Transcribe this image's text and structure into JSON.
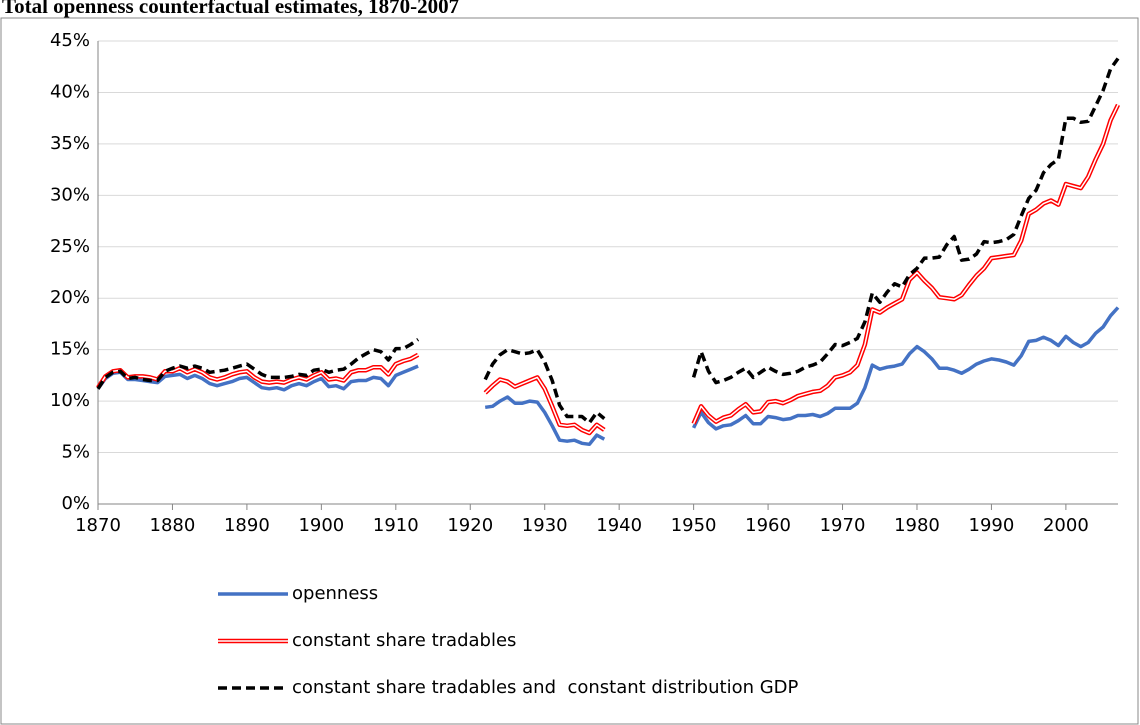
{
  "chart_data": {
    "type": "line",
    "title": "Total openness counterfactual estimates, 1870-2007",
    "x": [
      1870,
      1871,
      1872,
      1873,
      1874,
      1875,
      1876,
      1877,
      1878,
      1879,
      1880,
      1881,
      1882,
      1883,
      1884,
      1885,
      1886,
      1887,
      1888,
      1889,
      1890,
      1891,
      1892,
      1893,
      1894,
      1895,
      1896,
      1897,
      1898,
      1899,
      1900,
      1901,
      1902,
      1903,
      1904,
      1905,
      1906,
      1907,
      1908,
      1909,
      1910,
      1911,
      1912,
      1913,
      1914,
      1915,
      1916,
      1917,
      1918,
      1919,
      1920,
      1921,
      1922,
      1923,
      1924,
      1925,
      1926,
      1927,
      1928,
      1929,
      1930,
      1931,
      1932,
      1933,
      1934,
      1935,
      1936,
      1937,
      1938,
      1939,
      1940,
      1941,
      1942,
      1943,
      1944,
      1945,
      1946,
      1947,
      1948,
      1949,
      1950,
      1951,
      1952,
      1953,
      1954,
      1955,
      1956,
      1957,
      1958,
      1959,
      1960,
      1961,
      1962,
      1963,
      1964,
      1965,
      1966,
      1967,
      1968,
      1969,
      1970,
      1971,
      1972,
      1973,
      1974,
      1975,
      1976,
      1977,
      1978,
      1979,
      1980,
      1981,
      1982,
      1983,
      1984,
      1985,
      1986,
      1987,
      1988,
      1989,
      1990,
      1991,
      1992,
      1993,
      1994,
      1995,
      1996,
      1997,
      1998,
      1999,
      2000,
      2001,
      2002,
      2003,
      2004,
      2005,
      2006,
      2007
    ],
    "series": [
      {
        "name": "openness",
        "color": "#4472c4",
        "style": "solid",
        "values": [
          11.2,
          12.2,
          12.7,
          12.8,
          12.1,
          12.1,
          12.0,
          11.9,
          11.8,
          12.4,
          12.5,
          12.6,
          12.2,
          12.5,
          12.2,
          11.7,
          11.5,
          11.7,
          11.9,
          12.2,
          12.3,
          11.8,
          11.3,
          11.2,
          11.3,
          11.1,
          11.5,
          11.7,
          11.5,
          11.9,
          12.2,
          11.4,
          11.5,
          11.2,
          11.9,
          12.0,
          12.0,
          12.3,
          12.2,
          11.5,
          12.5,
          12.8,
          13.1,
          13.4,
          null,
          null,
          null,
          null,
          null,
          null,
          null,
          null,
          9.4,
          9.5,
          10.0,
          10.4,
          9.8,
          9.8,
          10.0,
          9.9,
          8.9,
          7.6,
          6.2,
          6.1,
          6.2,
          5.9,
          5.8,
          6.7,
          6.3,
          null,
          null,
          null,
          null,
          null,
          null,
          null,
          null,
          null,
          null,
          null,
          7.4,
          8.9,
          7.9,
          7.3,
          7.6,
          7.7,
          8.1,
          8.6,
          7.8,
          7.8,
          8.5,
          8.4,
          8.2,
          8.3,
          8.6,
          8.6,
          8.7,
          8.5,
          8.8,
          9.3,
          9.3,
          9.3,
          9.8,
          11.3,
          13.5,
          13.1,
          13.3,
          13.4,
          13.6,
          14.6,
          15.3,
          14.8,
          14.1,
          13.2,
          13.2,
          13.0,
          12.7,
          13.1,
          13.6,
          13.9,
          14.1,
          14.0,
          13.8,
          13.5,
          14.4,
          15.8,
          15.9,
          16.2,
          15.9,
          15.4,
          16.3,
          15.7,
          15.3,
          15.7,
          16.6,
          17.2,
          18.3,
          19.1
        ]
      },
      {
        "name": "constant share tradables",
        "color": "#ff0000",
        "style": "double",
        "values": [
          11.3,
          12.4,
          12.9,
          13.0,
          12.3,
          12.4,
          12.4,
          12.3,
          12.1,
          12.9,
          12.9,
          13.2,
          12.8,
          13.1,
          12.8,
          12.3,
          12.1,
          12.3,
          12.6,
          12.8,
          12.9,
          12.3,
          11.9,
          11.8,
          11.9,
          11.8,
          12.1,
          12.3,
          12.1,
          12.5,
          12.8,
          12.1,
          12.2,
          12.0,
          12.8,
          13.0,
          13.0,
          13.3,
          13.3,
          12.6,
          13.6,
          13.9,
          14.1,
          14.5,
          null,
          null,
          null,
          null,
          null,
          null,
          null,
          null,
          10.8,
          11.5,
          12.1,
          11.9,
          11.4,
          11.7,
          12.0,
          12.3,
          11.2,
          9.5,
          7.7,
          7.6,
          7.7,
          7.2,
          6.9,
          7.7,
          7.2,
          null,
          null,
          null,
          null,
          null,
          null,
          null,
          null,
          null,
          null,
          null,
          7.8,
          9.5,
          8.6,
          8.0,
          8.4,
          8.6,
          9.2,
          9.7,
          8.9,
          9.0,
          9.9,
          10.0,
          9.8,
          10.1,
          10.5,
          10.7,
          10.9,
          11.0,
          11.5,
          12.3,
          12.5,
          12.8,
          13.5,
          15.5,
          18.9,
          18.6,
          19.1,
          19.5,
          19.9,
          21.8,
          22.5,
          21.7,
          21.0,
          20.1,
          20.0,
          19.9,
          20.3,
          21.3,
          22.2,
          22.9,
          23.9,
          24.0,
          24.1,
          24.2,
          25.6,
          28.2,
          28.6,
          29.2,
          29.5,
          29.1,
          31.1,
          30.9,
          30.7,
          31.8,
          33.5,
          35.0,
          37.3,
          38.8
        ]
      },
      {
        "name": "constant share tradables and  constant distribution GDP",
        "color": "#000000",
        "style": "dashed",
        "values": [
          11.2,
          12.3,
          12.8,
          12.9,
          12.2,
          12.3,
          12.1,
          12.0,
          12.0,
          12.9,
          13.2,
          13.4,
          13.2,
          13.4,
          13.2,
          12.8,
          12.9,
          13.0,
          13.2,
          13.4,
          13.6,
          13.1,
          12.6,
          12.3,
          12.3,
          12.3,
          12.4,
          12.6,
          12.5,
          13.0,
          13.1,
          12.8,
          13.0,
          13.1,
          13.6,
          14.2,
          14.6,
          15.0,
          14.8,
          14.0,
          15.1,
          15.1,
          15.5,
          16.0,
          null,
          null,
          null,
          null,
          null,
          null,
          null,
          null,
          12.1,
          13.6,
          14.5,
          15.0,
          14.8,
          14.6,
          14.7,
          15.0,
          13.8,
          12.0,
          9.6,
          8.5,
          8.5,
          8.5,
          7.9,
          8.9,
          8.3,
          null,
          null,
          null,
          null,
          null,
          null,
          null,
          null,
          null,
          null,
          null,
          12.3,
          14.8,
          12.9,
          11.8,
          12.0,
          12.3,
          12.8,
          13.2,
          12.3,
          12.8,
          13.3,
          12.9,
          12.6,
          12.7,
          12.9,
          13.3,
          13.5,
          13.8,
          14.6,
          15.5,
          15.4,
          15.7,
          16.1,
          17.7,
          20.5,
          19.6,
          20.6,
          21.4,
          21.1,
          22.3,
          22.9,
          23.9,
          23.9,
          24.0,
          25.2,
          26.0,
          23.7,
          23.8,
          24.3,
          25.5,
          25.4,
          25.5,
          25.7,
          26.2,
          28.0,
          29.7,
          30.5,
          32.2,
          33.0,
          33.5,
          37.5,
          37.5,
          37.1,
          37.2,
          38.7,
          40.2,
          42.3,
          43.3
        ]
      }
    ],
    "xlim": [
      1870,
      2007
    ],
    "xticks": [
      1870,
      1880,
      1890,
      1900,
      1910,
      1920,
      1930,
      1940,
      1950,
      1960,
      1970,
      1980,
      1990,
      2000
    ],
    "ylim": [
      0,
      45
    ],
    "yticks": [
      {
        "value": 0,
        "label": "0%"
      },
      {
        "value": 5,
        "label": "5%"
      },
      {
        "value": 10,
        "label": "10%"
      },
      {
        "value": 15,
        "label": "15%"
      },
      {
        "value": 20,
        "label": "20%"
      },
      {
        "value": 25,
        "label": "25%"
      },
      {
        "value": 30,
        "label": "30%"
      },
      {
        "value": 35,
        "label": "35%"
      },
      {
        "value": 40,
        "label": "40%"
      },
      {
        "value": 45,
        "label": "45%"
      }
    ],
    "grid": true,
    "legend": "bottom"
  }
}
